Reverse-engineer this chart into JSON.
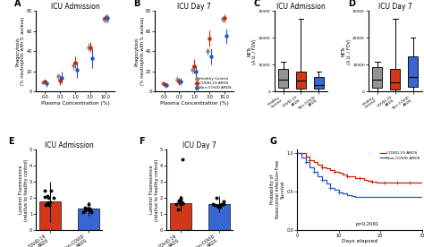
{
  "panel_A_title": "ICU Admission",
  "panel_B_title": "ICU Day 7",
  "panel_C_title": "ICU Admission",
  "panel_D_title": "ICU Day 7",
  "panel_E_title": "ICU Admission",
  "panel_F_title": "ICU Day 7",
  "xlabel_AB": "Plasma Concentration (%)",
  "ylabel_A": "Phagocytosis\n(% neutrophils with S. aureus)",
  "ylabel_B": "Phagocytosis\n(% neutrophils with S. aureus)",
  "ylabel_CD": "NETs\n(A.U. / FOV)",
  "ylabel_EF_E": "Luminol Fluorescence\n(relative to healthy control)",
  "ylabel_EF_F": "Luminol Fluorescence\n(relative to healthy control)",
  "ylabel_G": "Probability of\nNosocomial Infection-Free\nSurvival",
  "xlabel_G": "Days elapsed",
  "conc_x": [
    0,
    1,
    2,
    3,
    4
  ],
  "conc_labels": [
    "0.0",
    "0.3",
    "1.0",
    "3.0",
    "10.0"
  ],
  "healthy_A_mean": [
    9,
    15,
    26,
    44,
    72
  ],
  "healthy_A_err": [
    2,
    3,
    4,
    4,
    3
  ],
  "covid_A_mean": [
    10,
    11,
    29,
    44,
    73
  ],
  "covid_A_err": [
    2,
    5,
    6,
    5,
    4
  ],
  "noncovid_A_mean": [
    8,
    14,
    22,
    33,
    73
  ],
  "noncovid_A_err": [
    3,
    6,
    8,
    10,
    4
  ],
  "healthy_B_mean": [
    8,
    12,
    22,
    40,
    72
  ],
  "healthy_B_err": [
    2,
    3,
    4,
    4,
    3
  ],
  "covid_B_mean": [
    7,
    10,
    25,
    53,
    73
  ],
  "covid_B_err": [
    2,
    4,
    7,
    8,
    4
  ],
  "noncovid_B_mean": [
    6,
    10,
    20,
    35,
    55
  ],
  "noncovid_B_err": [
    2,
    4,
    6,
    8,
    8
  ],
  "color_healthy": "#888888",
  "color_covid": "#cc2200",
  "color_noncovid": "#2255cc",
  "nets_C_healthy_median": 4500,
  "nets_C_healthy_q1": 1500,
  "nets_C_healthy_q3": 8500,
  "nets_C_healthy_whislo": 200,
  "nets_C_healthy_whishi": 11000,
  "nets_C_covid_median": 4000,
  "nets_C_covid_q1": 1000,
  "nets_C_covid_q3": 7500,
  "nets_C_covid_whislo": 200,
  "nets_C_covid_whishi": 27000,
  "nets_C_noncovid_median": 2500,
  "nets_C_noncovid_q1": 1000,
  "nets_C_noncovid_q3": 5500,
  "nets_C_noncovid_whislo": 200,
  "nets_C_noncovid_whishi": 7500,
  "nets_D_healthy_median": 4500,
  "nets_D_healthy_q1": 1500,
  "nets_D_healthy_q3": 9000,
  "nets_D_healthy_whislo": 200,
  "nets_D_healthy_whishi": 11000,
  "nets_D_covid_median": 3500,
  "nets_D_covid_q1": 800,
  "nets_D_covid_q3": 8500,
  "nets_D_covid_whislo": 200,
  "nets_D_covid_whishi": 27000,
  "nets_D_noncovid_median": 5500,
  "nets_D_noncovid_q1": 1800,
  "nets_D_noncovid_q3": 13000,
  "nets_D_noncovid_whislo": 200,
  "nets_D_noncovid_whishi": 20000,
  "bar_E_covid_mean": 1.75,
  "bar_E_covid_err": 1.25,
  "bar_E_noncovid_mean": 1.3,
  "bar_E_noncovid_err": 0.45,
  "bar_F_covid_mean": 1.65,
  "bar_F_covid_err": 0.5,
  "bar_F_noncovid_mean": 1.6,
  "bar_F_noncovid_err": 0.5,
  "km_covid_times": [
    0,
    1,
    2,
    3,
    4,
    5,
    6,
    7,
    8,
    9,
    10,
    11,
    12,
    13,
    14,
    15,
    16,
    17,
    18,
    19,
    20,
    21,
    22,
    23,
    24,
    25,
    26,
    27,
    28,
    29,
    30
  ],
  "km_covid_surv": [
    1.0,
    1.0,
    0.95,
    0.91,
    0.88,
    0.85,
    0.82,
    0.8,
    0.78,
    0.76,
    0.74,
    0.72,
    0.7,
    0.7,
    0.68,
    0.67,
    0.65,
    0.64,
    0.63,
    0.62,
    0.62,
    0.62,
    0.62,
    0.62,
    0.62,
    0.62,
    0.62,
    0.62,
    0.62,
    0.62,
    0.62
  ],
  "km_noncovid_times": [
    0,
    1,
    2,
    3,
    4,
    5,
    6,
    7,
    8,
    9,
    10,
    11,
    12,
    13,
    14,
    15,
    16,
    17,
    18,
    19,
    20,
    21,
    22,
    23,
    24,
    25,
    26,
    27,
    28,
    29,
    30
  ],
  "km_noncovid_surv": [
    1.0,
    0.94,
    0.88,
    0.82,
    0.76,
    0.7,
    0.65,
    0.6,
    0.55,
    0.52,
    0.49,
    0.47,
    0.45,
    0.44,
    0.43,
    0.43,
    0.43,
    0.43,
    0.43,
    0.43,
    0.43,
    0.43,
    0.43,
    0.43,
    0.43,
    0.43,
    0.43,
    0.43,
    0.43,
    0.43,
    0.43
  ],
  "p_value_G": "p=0.2091",
  "ylim_AB": [
    0,
    80
  ],
  "yticks_AB": [
    0,
    20,
    40,
    60,
    80
  ],
  "ylim_CD": [
    0,
    30000
  ],
  "yticks_CD": [
    0,
    10000,
    20000,
    30000
  ],
  "ylim_EF": [
    0,
    5
  ],
  "yticks_EF": [
    0,
    1,
    2,
    3,
    4,
    5
  ],
  "ylim_G": [
    0.0,
    1.05
  ],
  "yticks_G": [
    0.0,
    0.5,
    1.0
  ],
  "xticks_G": [
    0,
    10,
    20,
    30
  ],
  "bg_color": "#ffffff"
}
